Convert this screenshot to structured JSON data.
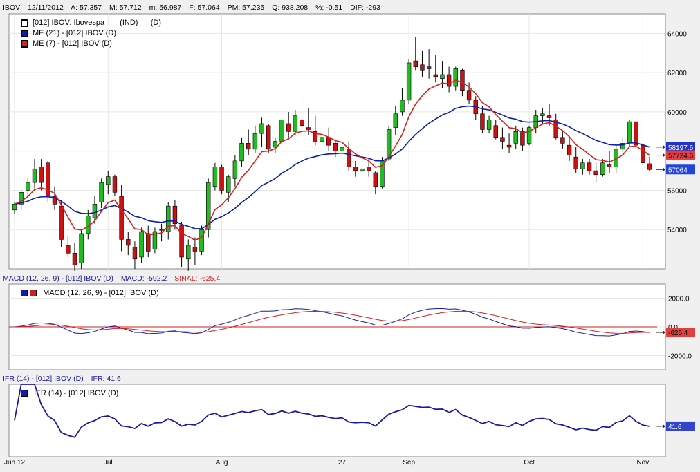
{
  "header": {
    "symbol": "IBOV",
    "date": "12/11/2012",
    "open": "A: 57.357",
    "high": "M: 57.712",
    "low": "m: 56.987",
    "close": "F: 57.064",
    "avg": "PM: 57.235",
    "qty": "Q: 938.208",
    "pct": "%: -0.51",
    "dif": "DIF: -293"
  },
  "price_legend": [
    {
      "label": "[012] IBOV: Ibovespa",
      "extra": "(IND)      (D)",
      "color": "#000000"
    },
    {
      "label": "ME (21)  - [012] IBOV (D)",
      "color": "#0a1fa8"
    },
    {
      "label": "ME (7)  - [012] IBOV (D)",
      "color": "#d42020"
    }
  ],
  "macd_header": {
    "title": "MACD (12, 26, 9)  - [012] IBOV (D)",
    "macd": "MACD: -592,2",
    "signal": "SINAL: -625,4"
  },
  "macd_legend": "MACD (12, 26, 9)  - [012] IBOV (D)",
  "ifr_header": {
    "title": "IFR (14)  - [012] IBOV (D)",
    "value": "IFR: 41,6"
  },
  "ifr_legend": "IFR (14)  - [012] IBOV (D)",
  "x_ticks": [
    {
      "label": "Jun 12",
      "index": 0
    },
    {
      "label": "Jul",
      "index": 14
    },
    {
      "label": "Aug",
      "index": 31
    },
    {
      "label": "27",
      "index": 49
    },
    {
      "label": "Sep",
      "index": 59
    },
    {
      "label": "Oct",
      "index": 77
    },
    {
      "label": "Nov",
      "index": 94
    }
  ],
  "colors": {
    "up": "#22bb22",
    "down": "#cc1111",
    "ema21": "#0a1fa8",
    "ema7": "#d42020",
    "macd": "#1a1aa0",
    "signal": "#cc2222",
    "ifr": "#1a1aa0",
    "ifr_high": "#cc2222",
    "ifr_low": "#22bb22"
  },
  "chart_data": [
    {
      "type": "candlestick",
      "title": "[012] IBOV: Ibovespa",
      "ylim": [
        52000,
        65000
      ],
      "y_ticks": [
        54000,
        56000,
        58000,
        60000,
        62000,
        64000
      ],
      "y_tick_labels": [
        "54000",
        "56000",
        "58000",
        "60000",
        "62000",
        "64000"
      ],
      "last_labels": {
        "ema21": "58197.6",
        "ema7": "57724.6",
        "close": "57064"
      },
      "candles": [
        [
          55000,
          55400,
          54800,
          55300
        ],
        [
          55300,
          56000,
          55000,
          55900
        ],
        [
          56000,
          56600,
          55700,
          56400
        ],
        [
          56400,
          57600,
          56100,
          57100
        ],
        [
          57200,
          57600,
          56000,
          56400
        ],
        [
          57400,
          57500,
          55400,
          55700
        ],
        [
          55700,
          56200,
          55000,
          55300
        ],
        [
          55200,
          55500,
          53100,
          53500
        ],
        [
          53200,
          53700,
          52600,
          52800
        ],
        [
          52800,
          53300,
          51900,
          52200
        ],
        [
          52300,
          54000,
          52000,
          53800
        ],
        [
          53800,
          55000,
          53500,
          54700
        ],
        [
          54600,
          55700,
          54300,
          55300
        ],
        [
          55400,
          56600,
          55100,
          56400
        ],
        [
          56300,
          57000,
          55800,
          56700
        ],
        [
          56700,
          56800,
          55700,
          55900
        ],
        [
          55700,
          56300,
          52900,
          53500
        ],
        [
          53500,
          53900,
          52700,
          53200
        ],
        [
          53100,
          53400,
          52000,
          52500
        ],
        [
          52600,
          54100,
          52300,
          53900
        ],
        [
          53800,
          54200,
          52600,
          52900
        ],
        [
          53000,
          54100,
          52800,
          53900
        ],
        [
          54000,
          54300,
          53400,
          54000
        ],
        [
          53900,
          55400,
          53500,
          55200
        ],
        [
          55200,
          55500,
          54000,
          54300
        ],
        [
          54200,
          54400,
          52100,
          52600
        ],
        [
          52500,
          53500,
          51900,
          53200
        ],
        [
          53100,
          53600,
          52200,
          52900
        ],
        [
          52900,
          54200,
          52700,
          54000
        ],
        [
          54000,
          56600,
          53600,
          56400
        ],
        [
          56200,
          57400,
          56000,
          57200
        ],
        [
          57200,
          57300,
          55800,
          56000
        ],
        [
          55900,
          56800,
          55400,
          56700
        ],
        [
          56600,
          57800,
          56200,
          57500
        ],
        [
          57500,
          58700,
          57200,
          58400
        ],
        [
          58400,
          59100,
          57800,
          58100
        ],
        [
          58100,
          59300,
          57900,
          58900
        ],
        [
          58900,
          59700,
          58200,
          59400
        ],
        [
          59300,
          59400,
          57900,
          58100
        ],
        [
          58200,
          58700,
          57900,
          58500
        ],
        [
          58500,
          59700,
          58300,
          59600
        ],
        [
          59400,
          60000,
          58700,
          59000
        ],
        [
          59000,
          60100,
          58800,
          59800
        ],
        [
          59600,
          60700,
          59100,
          59300
        ],
        [
          59200,
          60200,
          58800,
          59100
        ],
        [
          59000,
          59800,
          58300,
          58500
        ],
        [
          58500,
          59000,
          58300,
          58700
        ],
        [
          58700,
          59200,
          58000,
          58300
        ],
        [
          58400,
          58600,
          57700,
          58000
        ],
        [
          58000,
          58600,
          57600,
          58200
        ],
        [
          58100,
          58500,
          57000,
          57200
        ],
        [
          57200,
          57500,
          56700,
          57000
        ],
        [
          57000,
          57700,
          56900,
          57100
        ],
        [
          57200,
          57600,
          56700,
          57000
        ],
        [
          56900,
          57000,
          55800,
          56200
        ],
        [
          56200,
          57700,
          56100,
          57500
        ],
        [
          57600,
          59300,
          57500,
          59100
        ],
        [
          59200,
          60300,
          58800,
          59900
        ],
        [
          60000,
          61200,
          59800,
          60600
        ],
        [
          60600,
          62700,
          60400,
          62500
        ],
        [
          62600,
          63800,
          62100,
          62300
        ],
        [
          62400,
          63100,
          61800,
          62100
        ],
        [
          62300,
          63200,
          61700,
          62200
        ],
        [
          61900,
          62900,
          61500,
          61800
        ],
        [
          61700,
          62600,
          61200,
          61900
        ],
        [
          61900,
          62300,
          61000,
          61300
        ],
        [
          61300,
          62300,
          61100,
          62200
        ],
        [
          62100,
          62200,
          60800,
          61100
        ],
        [
          61100,
          61500,
          60400,
          60600
        ],
        [
          60600,
          60800,
          59600,
          59900
        ],
        [
          59900,
          60300,
          58900,
          59100
        ],
        [
          59100,
          59800,
          58900,
          59600
        ],
        [
          59300,
          59600,
          58600,
          58700
        ],
        [
          58700,
          59200,
          58100,
          58500
        ],
        [
          58300,
          58900,
          57900,
          58200
        ],
        [
          58400,
          59300,
          58100,
          59000
        ],
        [
          59000,
          59200,
          58000,
          58300
        ],
        [
          58400,
          59300,
          58300,
          59200
        ],
        [
          59200,
          60100,
          58900,
          59800
        ],
        [
          59800,
          60200,
          59400,
          59900
        ],
        [
          59800,
          60400,
          59300,
          59700
        ],
        [
          59600,
          59900,
          58600,
          58700
        ],
        [
          58700,
          59000,
          58100,
          58400
        ],
        [
          58300,
          58700,
          57500,
          57800
        ],
        [
          57700,
          58200,
          56900,
          57100
        ],
        [
          57100,
          57600,
          56800,
          57400
        ],
        [
          57400,
          57600,
          56800,
          57000
        ],
        [
          57000,
          57400,
          56400,
          56800
        ],
        [
          56800,
          57600,
          56700,
          57400
        ],
        [
          57300,
          58000,
          56900,
          57200
        ],
        [
          57200,
          58300,
          56900,
          58100
        ],
        [
          58100,
          58700,
          57800,
          58400
        ],
        [
          58400,
          59600,
          58200,
          59500
        ],
        [
          59500,
          59500,
          58200,
          58300
        ],
        [
          58300,
          58400,
          57300,
          57400
        ],
        [
          57357,
          57712,
          56987,
          57064
        ]
      ]
    },
    {
      "type": "line",
      "title": "MACD (12, 26, 9)  - [012] IBOV (D)",
      "ylim": [
        -3000,
        3000
      ],
      "y_ticks": [
        -2000,
        0,
        2000
      ],
      "y_tick_labels": [
        "-2000.0",
        "0.0",
        "2000.0"
      ],
      "last_label": "-625.4"
    },
    {
      "type": "line",
      "title": "IFR (14)  - [012] IBOV (D)",
      "ylim": [
        0,
        100
      ],
      "levels": [
        70,
        30
      ],
      "last_label": "41.6"
    }
  ]
}
